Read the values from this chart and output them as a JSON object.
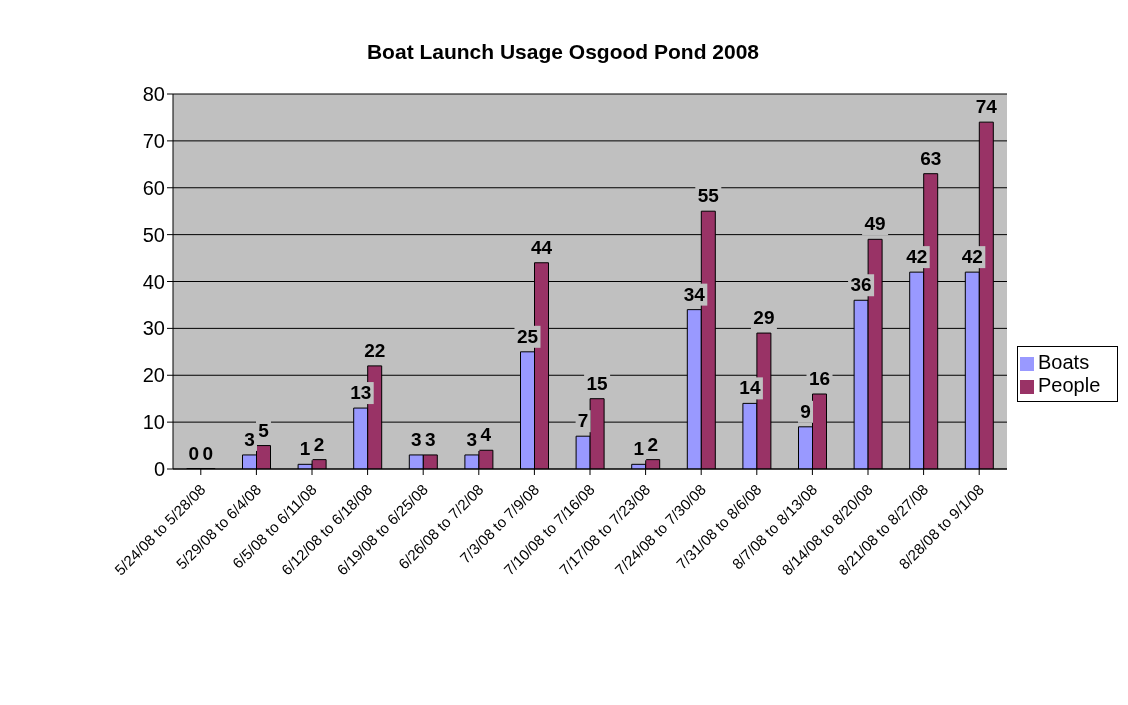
{
  "chart_data": {
    "type": "bar",
    "title": "Boat Launch Usage Osgood Pond 2008",
    "categories": [
      "5/24/08 to 5/28/08",
      "5/29/08 to 6/4/08",
      "6/5/08 to 6/11/08",
      "6/12/08 to 6/18/08",
      "6/19/08 to 6/25/08",
      "6/26/08 to 7/2/08",
      "7/3/08 to 7/9/08",
      "7/10/08 to 7/16/08",
      "7/17/08 to 7/23/08",
      "7/24/08 to 7/30/08",
      "7/31/08 to 8/6/08",
      "8/7/08 to 8/13/08",
      "8/14/08 to 8/20/08",
      "8/21/08 to 8/27/08",
      "8/28/08 to 9/1/08"
    ],
    "series": [
      {
        "name": "Boats",
        "color": "#9999ff",
        "values": [
          0,
          3,
          1,
          13,
          3,
          3,
          25,
          7,
          1,
          34,
          14,
          9,
          36,
          42,
          42
        ]
      },
      {
        "name": "People",
        "color": "#993366",
        "values": [
          0,
          5,
          2,
          22,
          3,
          4,
          44,
          15,
          2,
          55,
          29,
          16,
          49,
          63,
          74
        ]
      }
    ],
    "ylim": [
      0,
      80
    ],
    "yticks": [
      0,
      10,
      20,
      30,
      40,
      50,
      60,
      70,
      80
    ],
    "grid": "y",
    "legend": "right",
    "data_labels": true
  }
}
